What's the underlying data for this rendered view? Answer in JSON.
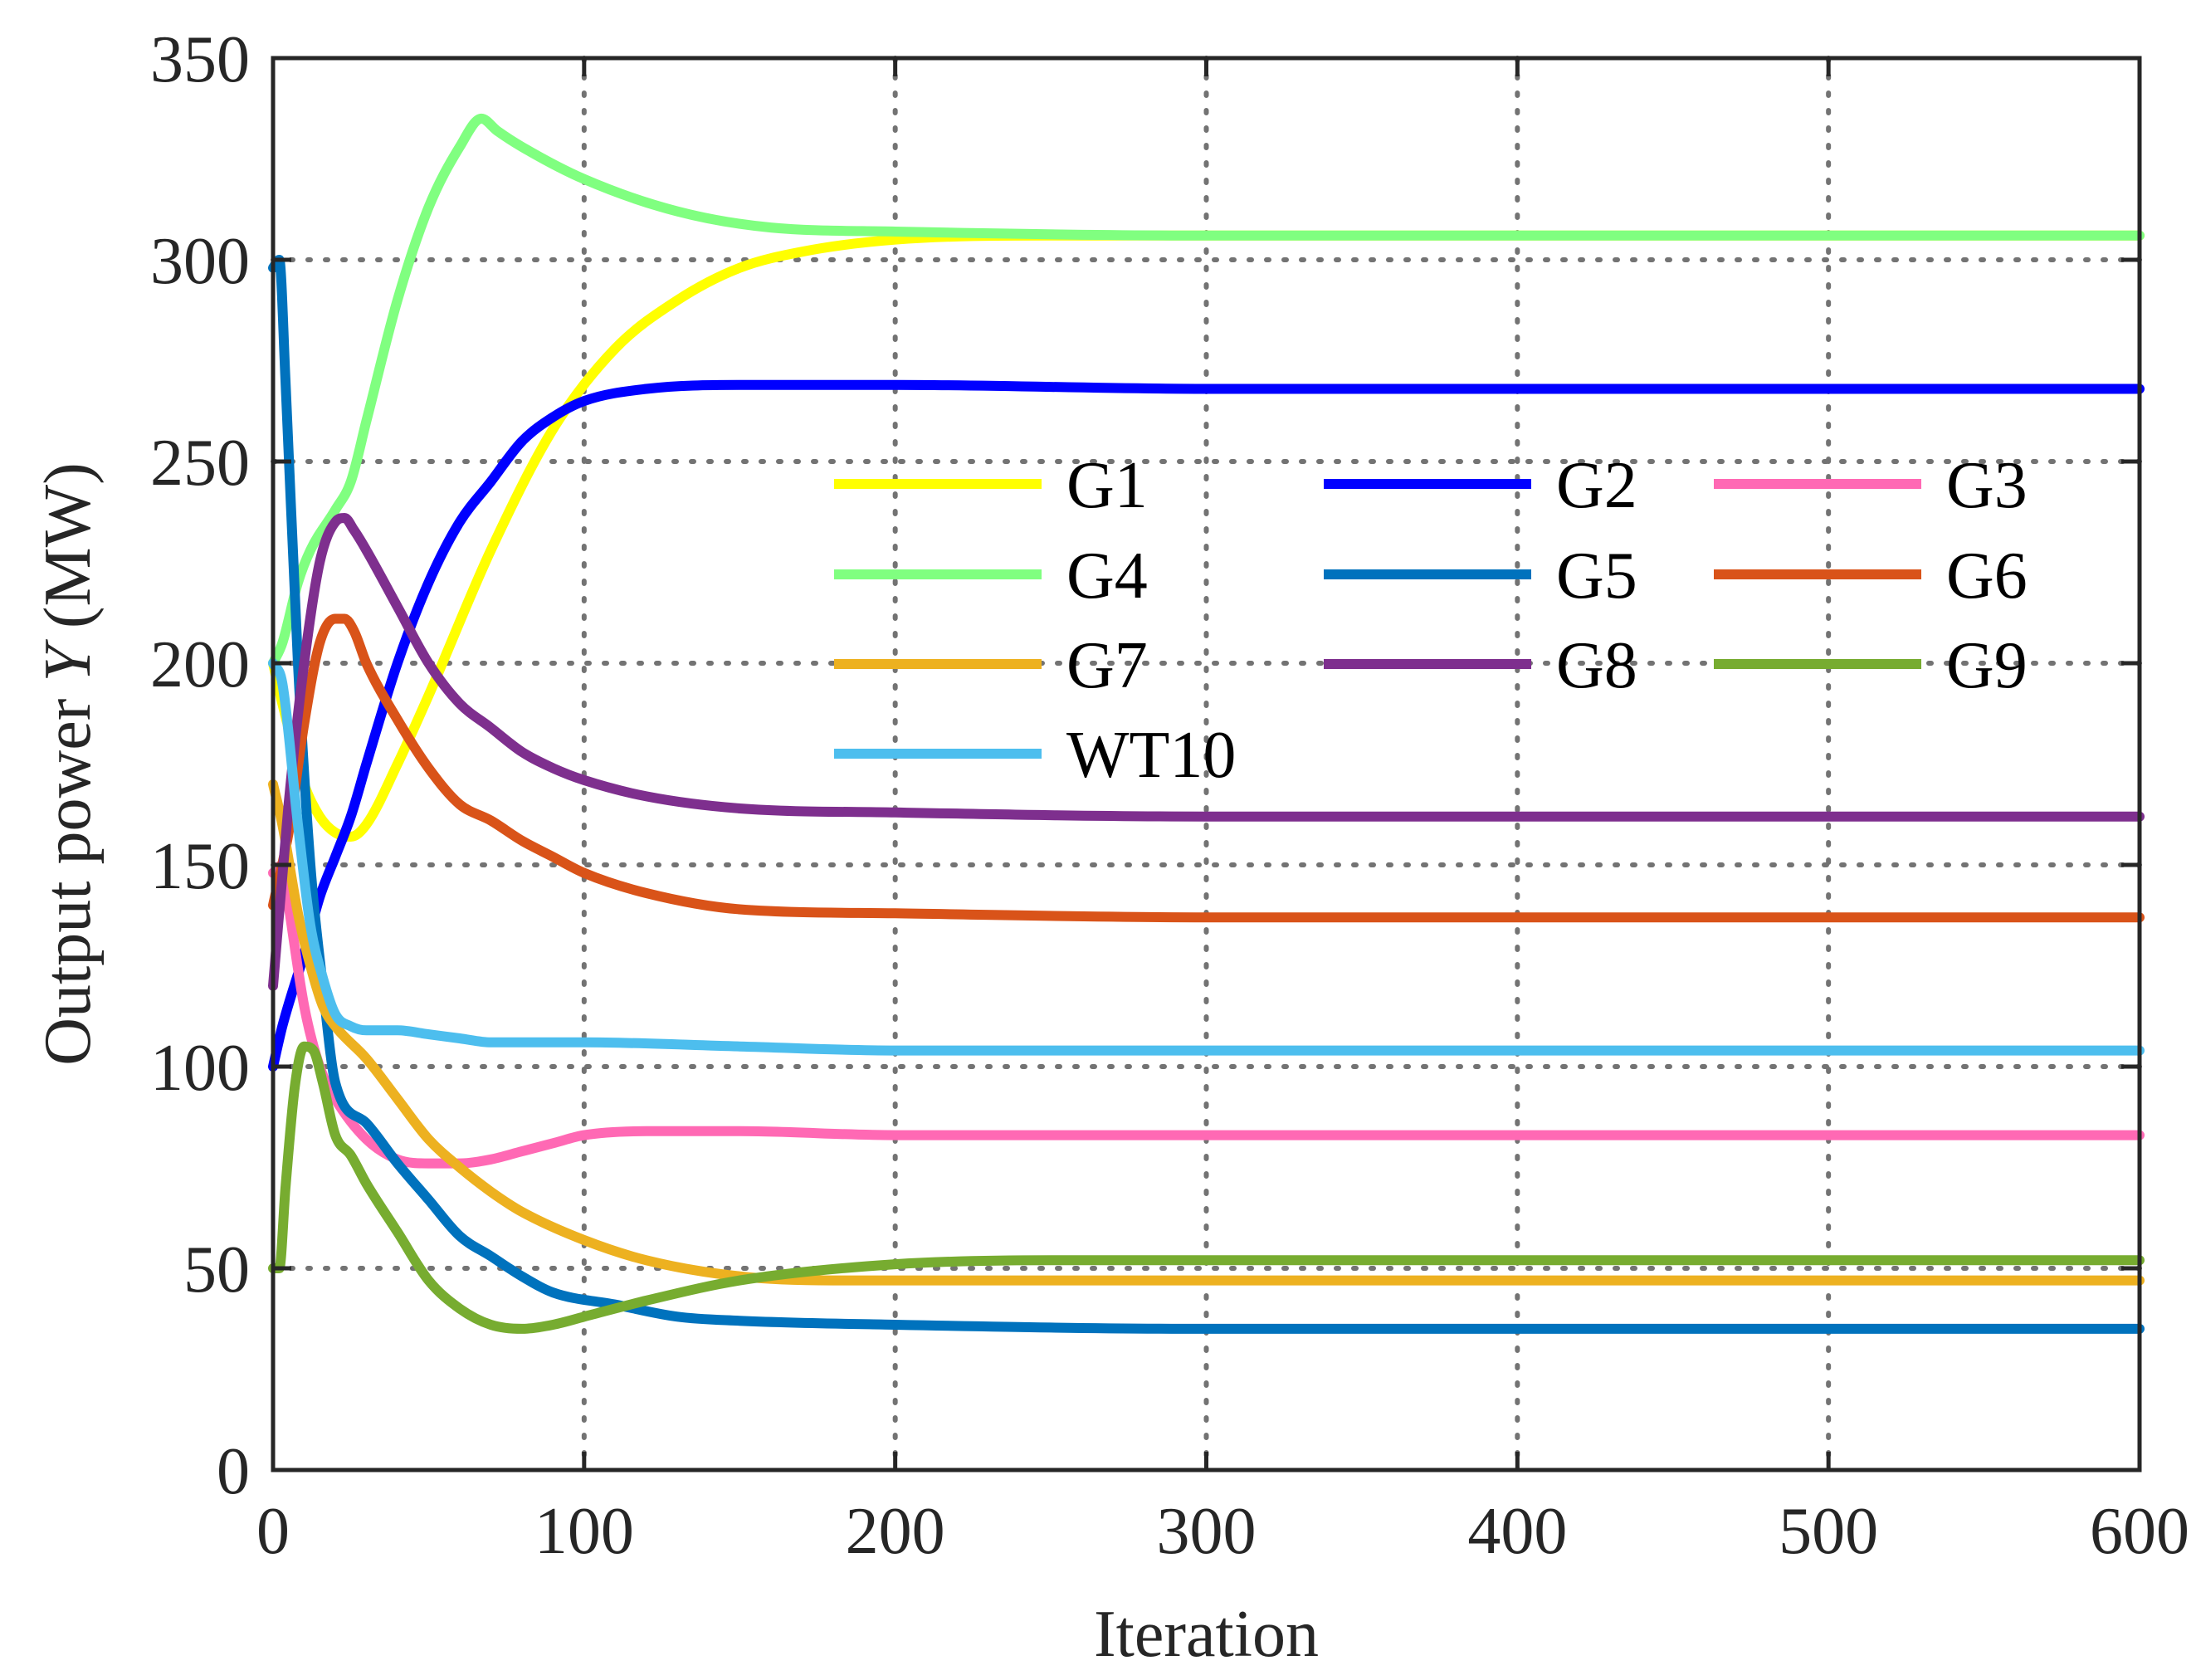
{
  "chart_data": {
    "type": "line",
    "title": "",
    "xlabel": "Iteration",
    "ylabel_prefix": "Output power ",
    "ylabel_var": "Y",
    "ylabel_suffix": " (MW)",
    "xlim": [
      0,
      600
    ],
    "ylim": [
      0,
      350
    ],
    "xticks": [
      0,
      100,
      200,
      300,
      400,
      500,
      600
    ],
    "yticks": [
      0,
      50,
      100,
      150,
      200,
      250,
      300,
      350
    ],
    "xtick_labels": [
      "0",
      "100",
      "200",
      "300",
      "400",
      "500",
      "600"
    ],
    "ytick_labels": [
      "0",
      "50",
      "100",
      "150",
      "200",
      "250",
      "300",
      "350"
    ],
    "grid": true,
    "legend_position": "center",
    "legend_columns": 3,
    "series": [
      {
        "name": "G1",
        "color": "#FFFF00",
        "x": [
          0,
          3,
          10,
          15,
          20,
          25,
          30,
          40,
          50,
          70,
          90,
          110,
          130,
          150,
          170,
          200,
          250,
          300,
          400,
          600
        ],
        "y": [
          200,
          190,
          170,
          162,
          158,
          157,
          160,
          175,
          192,
          228,
          258,
          278,
          290,
          298,
          302,
          305,
          306,
          306,
          306,
          306
        ]
      },
      {
        "name": "G2",
        "color": "#0000FF",
        "x": [
          0,
          3,
          10,
          15,
          20,
          25,
          30,
          40,
          50,
          60,
          70,
          80,
          90,
          100,
          120,
          150,
          200,
          300,
          600
        ],
        "y": [
          100,
          110,
          128,
          142,
          152,
          162,
          175,
          200,
          220,
          235,
          245,
          255,
          261,
          265,
          268,
          269,
          269,
          268,
          268
        ]
      },
      {
        "name": "G3",
        "color": "#FF69B4",
        "x": [
          0,
          3,
          5,
          10,
          15,
          20,
          30,
          40,
          50,
          60,
          70,
          80,
          90,
          100,
          120,
          150,
          200,
          300,
          600
        ],
        "y": [
          148,
          150,
          140,
          115,
          100,
          92,
          82,
          77,
          76,
          76,
          77,
          79,
          81,
          83,
          84,
          84,
          83,
          83,
          83
        ]
      },
      {
        "name": "G4",
        "color": "#80FF80",
        "x": [
          0,
          3,
          8,
          12,
          20,
          25,
          30,
          40,
          50,
          60,
          67,
          72,
          80,
          100,
          130,
          160,
          200,
          300,
          600
        ],
        "y": [
          200,
          205,
          220,
          228,
          238,
          245,
          260,
          290,
          313,
          328,
          335,
          332,
          328,
          320,
          312,
          308,
          307,
          306,
          306
        ]
      },
      {
        "name": "G5",
        "color": "#0072BD",
        "x": [
          0,
          2,
          4,
          8,
          12,
          16,
          20,
          30,
          40,
          50,
          60,
          70,
          80,
          90,
          110,
          130,
          150,
          200,
          300,
          600
        ],
        "y": [
          298,
          300,
          270,
          200,
          150,
          120,
          96,
          86,
          76,
          67,
          58,
          53,
          48,
          44,
          41,
          38,
          37,
          36,
          35,
          35
        ]
      },
      {
        "name": "G6",
        "color": "#D95319",
        "x": [
          0,
          5,
          10,
          15,
          20,
          23,
          26,
          30,
          40,
          50,
          60,
          70,
          80,
          90,
          100,
          120,
          150,
          200,
          300,
          600
        ],
        "y": [
          140,
          158,
          185,
          205,
          211,
          211,
          208,
          200,
          186,
          174,
          165,
          161,
          156,
          152,
          148,
          143,
          139,
          138,
          137,
          137
        ]
      },
      {
        "name": "G7",
        "color": "#EDB120",
        "x": [
          0,
          3,
          8,
          12,
          16,
          20,
          30,
          40,
          50,
          60,
          70,
          80,
          100,
          120,
          150,
          180,
          200,
          300,
          600
        ],
        "y": [
          170,
          160,
          138,
          125,
          115,
          110,
          102,
          92,
          82,
          75,
          69,
          64,
          57,
          52,
          48,
          47,
          47,
          47,
          47
        ]
      },
      {
        "name": "G8",
        "color": "#7E2F8E",
        "x": [
          0,
          5,
          10,
          15,
          20,
          23,
          26,
          30,
          40,
          50,
          60,
          70,
          80,
          90,
          100,
          120,
          150,
          200,
          300,
          600
        ],
        "y": [
          120,
          165,
          200,
          225,
          235,
          236,
          233,
          228,
          214,
          200,
          190,
          184,
          178,
          174,
          171,
          167,
          164,
          163,
          162,
          162
        ]
      },
      {
        "name": "G9",
        "color": "#77AC30",
        "x": [
          0,
          2,
          4,
          7,
          10,
          13,
          16,
          20,
          25,
          30,
          40,
          50,
          60,
          70,
          80,
          90,
          100,
          120,
          150,
          200,
          250,
          300,
          600
        ],
        "y": [
          50,
          50,
          70,
          95,
          105,
          104,
          96,
          83,
          78,
          71,
          59,
          47,
          40,
          36,
          35,
          36,
          38,
          42,
          47,
          51,
          52,
          52,
          52
        ]
      },
      {
        "name": "WT10",
        "color": "#4DBEEE",
        "x": [
          0,
          3,
          8,
          12,
          16,
          20,
          25,
          30,
          40,
          50,
          60,
          70,
          80,
          90,
          100,
          150,
          200,
          300,
          600
        ],
        "y": [
          200,
          195,
          160,
          135,
          122,
          113,
          110,
          109,
          109,
          108,
          107,
          106,
          106,
          106,
          106,
          105,
          104,
          104,
          104
        ]
      }
    ]
  }
}
